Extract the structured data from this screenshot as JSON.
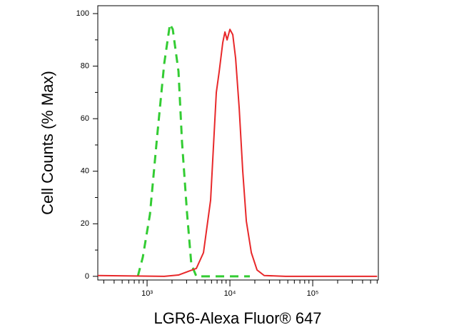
{
  "chart_data": {
    "type": "line",
    "x_label": "LGR6-Alexa Fluor® 647",
    "y_label": "Cell Counts (% Max)",
    "xscale": "log",
    "xlim": [
      254,
      620000
    ],
    "ylim": [
      -1.4,
      103
    ],
    "xticks": [
      {
        "value": 1000,
        "label": "10³"
      },
      {
        "value": 10000,
        "label": "10⁴"
      },
      {
        "value": 100000,
        "label": "10⁵"
      }
    ],
    "xminorticks": [
      300,
      400,
      500,
      600,
      700,
      800,
      900,
      2000,
      3000,
      4000,
      5000,
      6000,
      7000,
      8000,
      9000,
      20000,
      30000,
      40000,
      50000,
      60000,
      70000,
      80000,
      90000,
      200000,
      300000,
      400000,
      500000,
      600000
    ],
    "yticks": [
      0,
      20,
      40,
      60,
      80,
      100
    ],
    "yminorticks": [
      10,
      30,
      50,
      70,
      90
    ],
    "series": [
      {
        "color": "#33cc33",
        "dash": true,
        "x": [
          773,
          888,
          1083,
          1320,
          1611,
          1888,
          2042,
          2394,
          2642,
          3038,
          3422,
          3933,
          6457,
          17410
        ],
        "values": [
          0,
          7.3,
          23.6,
          53,
          81,
          96,
          94,
          78,
          51,
          24,
          4.6,
          0,
          0,
          0
        ]
      },
      {
        "color": "#e8282a",
        "dash": false,
        "x": [
          254,
          1611,
          2394,
          3228,
          3933,
          4796,
          5848,
          6855,
          7430,
          8203,
          8710,
          9247,
          10000,
          10830,
          11720,
          12950,
          14290,
          15790,
          18150,
          21280,
          25950,
          46990,
          600000
        ],
        "values": [
          0.3,
          0,
          0.5,
          2,
          3,
          9,
          29,
          70,
          78,
          89,
          93,
          90,
          94,
          92,
          83,
          64,
          40,
          21,
          9,
          2.4,
          0.3,
          0,
          0
        ]
      }
    ]
  }
}
